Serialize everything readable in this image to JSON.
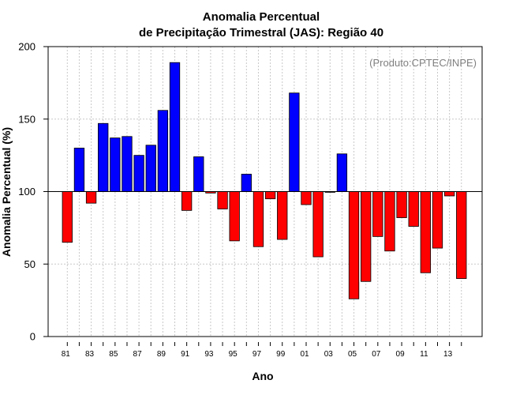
{
  "chart_data": {
    "type": "bar",
    "title": "Anomalia Percentual",
    "subtitle": "de Precipitação Trimestral (JAS): Região 40",
    "xlabel": "Ano",
    "ylabel": "Anomalia Percentual (%)",
    "credit": "(Produto:CPTEC/INPE)",
    "ylim": [
      0,
      200
    ],
    "yticks": [
      0,
      50,
      100,
      150,
      200
    ],
    "baseline": 100,
    "xtick_labels": [
      "81",
      "83",
      "85",
      "87",
      "89",
      "91",
      "93",
      "95",
      "97",
      "99",
      "01",
      "03",
      "05",
      "07",
      "09",
      "11",
      "13"
    ],
    "colors": {
      "above": "#0000ff",
      "below": "#ff0000",
      "grid": "#c8c8c8"
    },
    "categories": [
      "1981",
      "1982",
      "1983",
      "1984",
      "1985",
      "1986",
      "1987",
      "1988",
      "1989",
      "1990",
      "1991",
      "1992",
      "1993",
      "1994",
      "1995",
      "1996",
      "1997",
      "1998",
      "1999",
      "2000",
      "2001",
      "2002",
      "2003",
      "2004",
      "2005",
      "2006",
      "2007",
      "2008",
      "2009",
      "2010",
      "2011",
      "2012",
      "2013",
      "2014"
    ],
    "values": [
      65,
      130,
      92,
      147,
      137,
      138,
      125,
      132,
      156,
      189,
      87,
      124,
      99,
      88,
      66,
      112,
      62,
      95,
      67,
      168,
      91,
      55,
      99.5,
      126,
      26,
      38,
      69,
      59,
      82,
      76,
      44,
      61,
      97,
      40
    ]
  }
}
